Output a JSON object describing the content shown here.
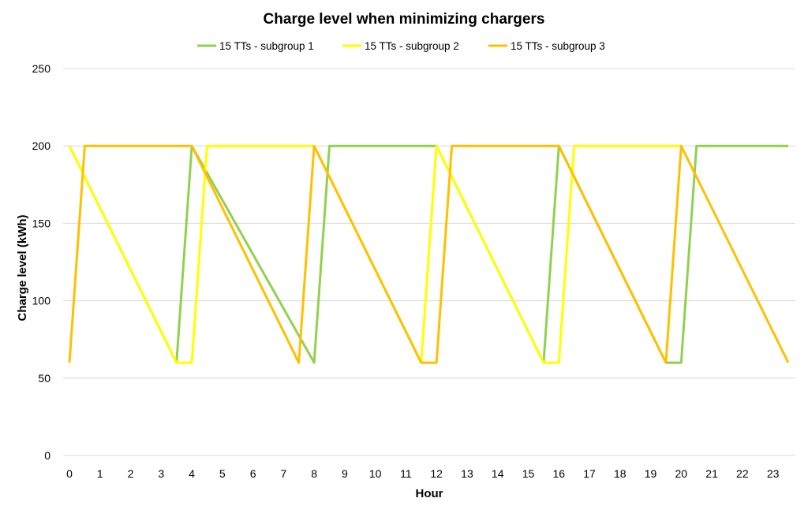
{
  "chart_data": {
    "type": "line",
    "title": "Charge level when minimizing chargers",
    "xlabel": "Hour",
    "ylabel": "Charge level (kWh)",
    "ylim": [
      0,
      250
    ],
    "yticks": [
      0,
      50,
      100,
      150,
      200,
      250
    ],
    "xlim": [
      0,
      23.5
    ],
    "xticks": [
      0,
      1,
      2,
      3,
      4,
      5,
      6,
      7,
      8,
      9,
      10,
      11,
      12,
      13,
      14,
      15,
      16,
      17,
      18,
      19,
      20,
      21,
      22,
      23
    ],
    "grid": "horizontal",
    "legend_position": "top",
    "series": [
      {
        "name": "15 TTs - subgroup 1",
        "color": "#92d050",
        "x": [
          0,
          3.5,
          4,
          8,
          8.5,
          12,
          15.5,
          16,
          19.5,
          20,
          20.5,
          23.5
        ],
        "y": [
          200,
          60,
          200,
          60,
          200,
          200,
          60,
          200,
          60,
          60,
          200,
          200
        ]
      },
      {
        "name": "15 TTs - subgroup 2",
        "color": "#ffff00",
        "x": [
          0,
          3.5,
          4,
          4.5,
          8,
          11.5,
          12,
          15.5,
          16,
          16.5,
          20
        ],
        "y": [
          200,
          60,
          60,
          200,
          200,
          60,
          200,
          60,
          60,
          200,
          200
        ]
      },
      {
        "name": "15 TTs - subgroup 3",
        "color": "#ffc000",
        "x": [
          0,
          0.5,
          4,
          7.5,
          8,
          11.5,
          12,
          12.5,
          16,
          19.5,
          20,
          23.5
        ],
        "y": [
          60,
          200,
          200,
          60,
          200,
          60,
          60,
          200,
          200,
          60,
          200,
          60
        ]
      }
    ]
  }
}
